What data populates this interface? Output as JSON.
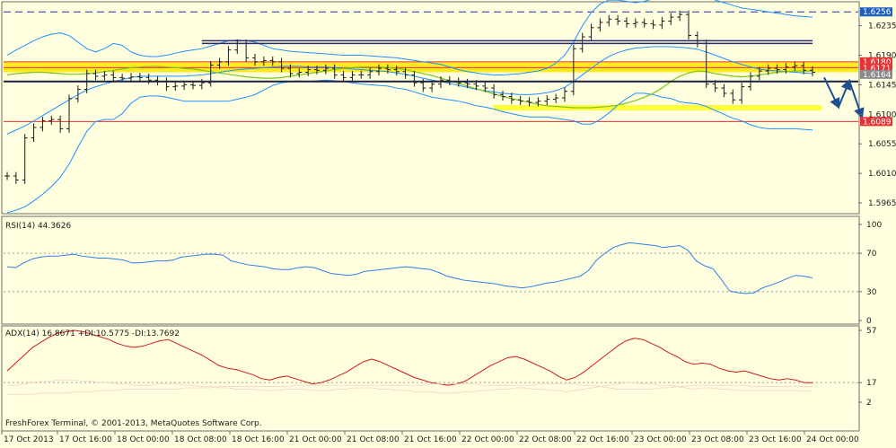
{
  "colors": {
    "background": "#FFFFE0",
    "border": "#6E6E6E",
    "price_bars": "#1A1A1A",
    "bollinger": "#1E90FF",
    "moving_average": "#7FC31C",
    "rsi_line": "#2F7FE6",
    "adx_line": "#D11A1A",
    "di_lines": "#F2D2C8",
    "resistance_line": "#E53333",
    "support_line": "#1A2240",
    "zone_fill": "#FFE600",
    "dashed_line": "#1F2FA8",
    "target_band": "#FFFF33",
    "arrows": "#1F4F8F",
    "label_blue": "#1F5FBF",
    "label_red": "#E53333"
  },
  "footer": {
    "copyright": "FreshForex Terminal, © 2001-2013, MetaQuotes Software Corp."
  },
  "chart_data": [
    {
      "type": "line",
      "panel": "price",
      "bar_style": "OHLC bars",
      "ylim": [
        1.595,
        1.627
      ],
      "y_ticks": [
        "1.6235",
        "1.6190",
        "1.6145",
        "1.6100",
        "1.6055",
        "1.6010",
        "1.5965"
      ],
      "price_labels": [
        {
          "text": "1.6256",
          "value": 1.6256,
          "color": "blue"
        },
        {
          "text": "1.6180",
          "value": 1.618,
          "color": "red"
        },
        {
          "text": "1.6171",
          "value": 1.6171,
          "color": "red"
        },
        {
          "text": "1.6164",
          "value": 1.6164,
          "color": "gray"
        },
        {
          "text": "1.6089",
          "value": 1.6089,
          "color": "red"
        }
      ],
      "x_ticks": [
        "17 Oct 2013",
        "17 Oct 16:00",
        "18 Oct 00:00",
        "18 Oct 08:00",
        "18 Oct 16:00",
        "21 Oct 00:00",
        "21 Oct 08:00",
        "21 Oct 16:00",
        "22 Oct 00:00",
        "22 Oct 08:00",
        "22 Oct 16:00",
        "23 Oct 00:00",
        "23 Oct 08:00",
        "23 Oct 16:00",
        "24 Oct 00:00"
      ],
      "close": [
        1.6006,
        1.6,
        1.6064,
        1.608,
        1.609,
        1.6092,
        1.6078,
        1.6124,
        1.6138,
        1.6162,
        1.6158,
        1.616,
        1.6156,
        1.6155,
        1.6157,
        1.6156,
        1.6152,
        1.615,
        1.6142,
        1.6143,
        1.6145,
        1.6144,
        1.6148,
        1.6175,
        1.618,
        1.6198,
        1.6208,
        1.6186,
        1.618,
        1.6182,
        1.618,
        1.617,
        1.6162,
        1.6164,
        1.6168,
        1.6167,
        1.617,
        1.616,
        1.6156,
        1.616,
        1.616,
        1.6165,
        1.617,
        1.6168,
        1.6165,
        1.616,
        1.6148,
        1.614,
        1.6146,
        1.6152,
        1.615,
        1.6148,
        1.6146,
        1.6143,
        1.614,
        1.613,
        1.6127,
        1.6122,
        1.612,
        1.6118,
        1.612,
        1.6123,
        1.6125,
        1.6135,
        1.62,
        1.6218,
        1.6232,
        1.624,
        1.6245,
        1.6242,
        1.6238,
        1.624,
        1.6238,
        1.6236,
        1.6242,
        1.6248,
        1.6252,
        1.622,
        1.6208,
        1.6146,
        1.614,
        1.6132,
        1.6122,
        1.6142,
        1.6158,
        1.6166,
        1.617,
        1.6168,
        1.6172,
        1.6174,
        1.6167,
        1.6164
      ],
      "bollinger_upper": [
        1.619,
        1.6198,
        1.6205,
        1.6212,
        1.6218,
        1.6222,
        1.6224,
        1.622,
        1.621,
        1.62,
        1.6195,
        1.62,
        1.6208,
        1.6205,
        1.6195,
        1.619,
        1.6188,
        1.6188,
        1.619,
        1.6193,
        1.6196,
        1.6198,
        1.62,
        1.6204,
        1.6208,
        1.6212,
        1.6213,
        1.6212,
        1.621,
        1.6205,
        1.62,
        1.6198,
        1.6196,
        1.6195,
        1.6194,
        1.6193,
        1.6192,
        1.6191,
        1.619,
        1.619,
        1.619,
        1.6189,
        1.6188,
        1.6187,
        1.6186,
        1.6184,
        1.6182,
        1.618,
        1.6178,
        1.6176,
        1.6172,
        1.6168,
        1.6165,
        1.6163,
        1.6161,
        1.616,
        1.616,
        1.6161,
        1.6162,
        1.6164,
        1.6166,
        1.617,
        1.6178,
        1.619,
        1.621,
        1.6235,
        1.6255,
        1.6268,
        1.6274,
        1.6274,
        1.6272,
        1.627,
        1.6272,
        1.6276,
        1.628,
        1.6282,
        1.6285,
        1.6285,
        1.6282,
        1.6278,
        1.6274,
        1.627,
        1.6266,
        1.6262,
        1.626,
        1.6258,
        1.6256,
        1.6254,
        1.6252,
        1.625,
        1.6249,
        1.6248
      ],
      "bollinger_middle": [
        1.607,
        1.6076,
        1.6082,
        1.609,
        1.6098,
        1.6106,
        1.6114,
        1.6122,
        1.613,
        1.6137,
        1.6142,
        1.6146,
        1.615,
        1.6153,
        1.6156,
        1.6158,
        1.6158,
        1.6158,
        1.6158,
        1.6158,
        1.6158,
        1.6159,
        1.616,
        1.6162,
        1.6164,
        1.6166,
        1.6168,
        1.6169,
        1.617,
        1.6171,
        1.6172,
        1.6173,
        1.6173,
        1.6173,
        1.6172,
        1.6172,
        1.6172,
        1.6171,
        1.617,
        1.6169,
        1.6168,
        1.6167,
        1.6166,
        1.6165,
        1.6163,
        1.6161,
        1.6158,
        1.6155,
        1.6152,
        1.615,
        1.6147,
        1.6144,
        1.6141,
        1.6138,
        1.6136,
        1.6134,
        1.6132,
        1.6131,
        1.613,
        1.613,
        1.6131,
        1.6133,
        1.6136,
        1.6141,
        1.615,
        1.616,
        1.617,
        1.618,
        1.6188,
        1.6194,
        1.6198,
        1.6201,
        1.6202,
        1.6203,
        1.6203,
        1.6203,
        1.6202,
        1.6201,
        1.6199,
        1.6195,
        1.619,
        1.6185,
        1.618,
        1.6176,
        1.6172,
        1.6169,
        1.6167,
        1.6166,
        1.6165,
        1.6164,
        1.6163,
        1.6162
      ],
      "bollinger_lower": [
        1.595,
        1.5954,
        1.5959,
        1.5968,
        1.5978,
        1.599,
        1.6004,
        1.6024,
        1.605,
        1.6074,
        1.6089,
        1.6092,
        1.6092,
        1.6101,
        1.6117,
        1.6126,
        1.6128,
        1.6128,
        1.6126,
        1.6123,
        1.612,
        1.612,
        1.612,
        1.612,
        1.612,
        1.612,
        1.6123,
        1.6126,
        1.613,
        1.6137,
        1.6144,
        1.6148,
        1.615,
        1.6151,
        1.615,
        1.6151,
        1.6152,
        1.6151,
        1.615,
        1.6148,
        1.6146,
        1.6145,
        1.6144,
        1.6143,
        1.614,
        1.6138,
        1.6134,
        1.613,
        1.6126,
        1.6124,
        1.6122,
        1.612,
        1.6117,
        1.6113,
        1.6111,
        1.6108,
        1.6104,
        1.6101,
        1.6098,
        1.6096,
        1.6096,
        1.6096,
        1.6094,
        1.6092,
        1.609,
        1.6085,
        1.6085,
        1.6092,
        1.6102,
        1.6114,
        1.6124,
        1.6132,
        1.6132,
        1.613,
        1.6126,
        1.6124,
        1.6119,
        1.6117,
        1.6116,
        1.6112,
        1.6106,
        1.61,
        1.6094,
        1.609,
        1.6084,
        1.608,
        1.6078,
        1.6078,
        1.6078,
        1.6078,
        1.6077,
        1.6076
      ],
      "moving_average": {
        "start_index": 0,
        "values": [
          1.616,
          1.6162,
          1.6163,
          1.6164,
          1.6164,
          1.6163,
          1.6162,
          1.6161,
          1.6161,
          1.6162,
          1.6163,
          1.6165,
          1.6167,
          1.6169,
          1.6171,
          1.6172,
          1.6173,
          1.6173,
          1.6172,
          1.6171,
          1.617,
          1.6169,
          1.6167,
          1.6165,
          1.6163,
          1.6161,
          1.6159,
          1.6157,
          1.6156,
          1.6155,
          1.6155,
          1.6156,
          1.6158,
          1.616,
          1.6162,
          1.6164,
          1.6166,
          1.6168,
          1.617,
          1.6171,
          1.6172,
          1.6172,
          1.6172,
          1.6171,
          1.617,
          1.6168,
          1.6165,
          1.6162,
          1.6159,
          1.6155,
          1.6151,
          1.6147,
          1.6143,
          1.6139,
          1.6135,
          1.6131,
          1.6127,
          1.6124,
          1.6121,
          1.6118,
          1.6115,
          1.6113,
          1.6112,
          1.6111,
          1.611,
          1.611,
          1.611,
          1.6111,
          1.6112,
          1.6114,
          1.6117,
          1.6121,
          1.6126,
          1.6132,
          1.614,
          1.615,
          1.6158,
          1.6163,
          1.6166,
          1.6165,
          1.6162,
          1.616,
          1.6158,
          1.6157,
          1.6158,
          1.616,
          1.6162,
          1.6164,
          1.6165,
          1.6166,
          1.6166,
          1.6166
        ]
      },
      "levels": [
        {
          "name": "dashed-resistance",
          "value": 1.6256,
          "style": "dashed"
        },
        {
          "name": "upper-resistance",
          "value": 1.621,
          "style": "double",
          "x_from": 22,
          "x_to": 91
        },
        {
          "name": "resistance-1",
          "value": 1.618,
          "style": "solid"
        },
        {
          "name": "resistance-2",
          "value": 1.6171,
          "style": "solid"
        },
        {
          "name": "support",
          "value": 1.615,
          "style": "thick"
        },
        {
          "name": "target",
          "value": 1.611,
          "style": "band",
          "x_from": 55,
          "x_to": 92
        },
        {
          "name": "lower-support",
          "value": 1.6089,
          "style": "solid"
        }
      ],
      "zone": {
        "low": 1.6164,
        "high": 1.618
      },
      "forecast_arrows": [
        {
          "from": 1.6156,
          "to": 1.6111
        },
        {
          "from": 1.6111,
          "to": 1.6151
        },
        {
          "from": 1.6151,
          "to": 1.6096
        }
      ]
    },
    {
      "type": "line",
      "panel": "rsi",
      "title": "RSI(14) 44.3626",
      "ylim": [
        0,
        100
      ],
      "y_ticks": [
        100,
        70,
        30,
        0
      ],
      "levels": [
        70,
        30
      ],
      "values": [
        56,
        55,
        60,
        64,
        66,
        67,
        67,
        68,
        69,
        67,
        66,
        65,
        65,
        64,
        63,
        60,
        60,
        61,
        62,
        62,
        63,
        66,
        67,
        68,
        69,
        69,
        68,
        62,
        60,
        58,
        57,
        56,
        54,
        53,
        53,
        55,
        56,
        55,
        52,
        49,
        48,
        47,
        48,
        51,
        52,
        53,
        54,
        55,
        56,
        55,
        54,
        53,
        50,
        46,
        44,
        42,
        41,
        40,
        39,
        38,
        36,
        35,
        34,
        35,
        37,
        39,
        40,
        42,
        44,
        46,
        52,
        63,
        70,
        76,
        79,
        81,
        80,
        79,
        78,
        76,
        77,
        78,
        73,
        62,
        57,
        54,
        43,
        31,
        29,
        28,
        29,
        34,
        37,
        40,
        44,
        47,
        46,
        44.4
      ]
    },
    {
      "type": "line",
      "panel": "adx",
      "title": "ADX(14) 16.8671 +DI:10.5775 -DI:13.7692",
      "ylim": [
        2,
        57
      ],
      "y_ticks": [
        57,
        17,
        2
      ],
      "levels": [
        17
      ],
      "series": [
        {
          "values": [
            26,
            32,
            38,
            44,
            48,
            52,
            55,
            56,
            57,
            56,
            54,
            52,
            50,
            47,
            45,
            44,
            45,
            47,
            49,
            50,
            47,
            44,
            41,
            38,
            34,
            30,
            28,
            27,
            25,
            23,
            20,
            19,
            21,
            22,
            20,
            18,
            16,
            17,
            19,
            22,
            25,
            29,
            33,
            35,
            33,
            30,
            27,
            24,
            21,
            19,
            17,
            16,
            15,
            16,
            18,
            22,
            26,
            30,
            33,
            36,
            37,
            35,
            32,
            29,
            26,
            22,
            19,
            21,
            25,
            30,
            35,
            40,
            45,
            49,
            51,
            50,
            47,
            44,
            40,
            37,
            33,
            31,
            32,
            31,
            28,
            26,
            25,
            26,
            24,
            22,
            20,
            19,
            20,
            19,
            17,
            16.9
          ]
        },
        {
          "values": [
            15,
            15,
            16,
            17,
            18,
            18,
            19,
            19,
            19,
            18,
            18,
            17,
            17,
            16,
            16,
            15,
            15,
            15,
            16,
            16,
            16,
            15,
            15,
            14,
            14,
            13,
            13,
            12,
            12,
            12,
            11,
            11,
            11,
            12,
            12,
            12,
            11,
            11,
            11,
            12,
            12,
            13,
            13,
            13,
            12,
            12,
            11,
            11,
            10,
            10,
            10,
            9,
            9,
            9,
            10,
            10,
            11,
            11,
            12,
            12,
            13,
            13,
            12,
            12,
            11,
            11,
            10,
            11,
            12,
            13,
            14,
            15,
            16,
            17,
            17,
            16,
            16,
            15,
            15,
            14,
            13,
            12,
            13,
            13,
            12,
            12,
            11,
            11,
            11,
            11,
            11,
            11,
            11,
            11,
            10.6,
            10.6
          ]
        },
        {
          "values": [
            8,
            8,
            8,
            8,
            9,
            9,
            9,
            9,
            10,
            10,
            10,
            11,
            11,
            11,
            12,
            12,
            12,
            12,
            12,
            12,
            12,
            13,
            13,
            13,
            13,
            14,
            14,
            14,
            14,
            14,
            14,
            14,
            14,
            14,
            15,
            15,
            15,
            15,
            15,
            15,
            15,
            15,
            15,
            15,
            15,
            15,
            15,
            15,
            15,
            15,
            16,
            16,
            16,
            16,
            16,
            16,
            15,
            15,
            15,
            15,
            15,
            15,
            15,
            16,
            16,
            16,
            16,
            16,
            15,
            15,
            14,
            13,
            12,
            12,
            12,
            12,
            12,
            13,
            13,
            14,
            14,
            15,
            15,
            15,
            15,
            15,
            15,
            15,
            14,
            14,
            14,
            14,
            14,
            14,
            13.8,
            13.8
          ]
        }
      ]
    }
  ]
}
